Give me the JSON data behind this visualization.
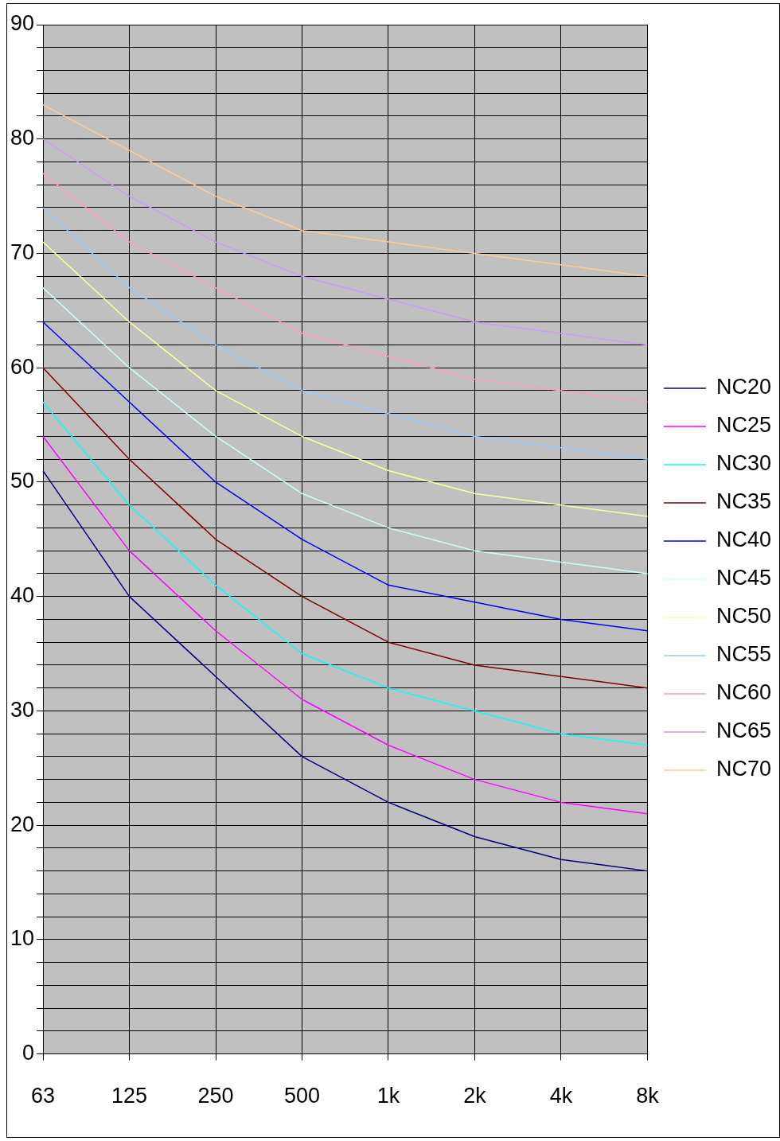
{
  "chart_data": {
    "type": "line",
    "categories": [
      "63",
      "125",
      "250",
      "500",
      "1k",
      "2k",
      "4k",
      "8k"
    ],
    "ylim": [
      0,
      90
    ],
    "yticks": [
      0,
      {
        "value": 2,
        "label": null
      },
      {
        "value": 4,
        "label": null
      },
      {
        "value": 6,
        "label": null
      },
      {
        "value": 8,
        "label": null
      },
      10,
      {
        "value": 12,
        "label": null
      },
      {
        "value": 14,
        "label": null
      },
      {
        "value": 16,
        "label": null
      },
      {
        "value": 18,
        "label": null
      },
      20,
      {
        "value": 22,
        "label": null
      },
      {
        "value": 24,
        "label": null
      },
      {
        "value": 26,
        "label": null
      },
      {
        "value": 28,
        "label": null
      },
      30,
      {
        "value": 32,
        "label": null
      },
      {
        "value": 34,
        "label": null
      },
      {
        "value": 36,
        "label": null
      },
      {
        "value": 38,
        "label": null
      },
      40,
      {
        "value": 42,
        "label": null
      },
      {
        "value": 44,
        "label": null
      },
      {
        "value": 46,
        "label": null
      },
      {
        "value": 48,
        "label": null
      },
      50,
      {
        "value": 52,
        "label": null
      },
      {
        "value": 54,
        "label": null
      },
      {
        "value": 56,
        "label": null
      },
      {
        "value": 58,
        "label": null
      },
      60,
      {
        "value": 62,
        "label": null
      },
      {
        "value": 64,
        "label": null
      },
      {
        "value": 66,
        "label": null
      },
      {
        "value": 68,
        "label": null
      },
      70,
      {
        "value": 72,
        "label": null
      },
      {
        "value": 74,
        "label": null
      },
      {
        "value": 76,
        "label": null
      },
      {
        "value": 78,
        "label": null
      },
      80,
      {
        "value": 82,
        "label": null
      },
      {
        "value": 84,
        "label": null
      },
      {
        "value": 86,
        "label": null
      },
      {
        "value": 88,
        "label": null
      },
      90
    ],
    "grid": true,
    "legend": "right",
    "marker": "none",
    "series": [
      {
        "name": "NC20",
        "color": "#000080",
        "values": [
          51,
          40,
          33,
          26,
          22,
          19,
          17,
          16
        ]
      },
      {
        "name": "NC25",
        "color": "#ff00ff",
        "values": [
          54,
          44,
          37,
          31,
          27,
          24,
          22,
          21
        ]
      },
      {
        "name": "NC30",
        "color": "#00ffff",
        "values": [
          57,
          48,
          41,
          35,
          32,
          30,
          28,
          27
        ]
      },
      {
        "name": "NC35",
        "color": "#800000",
        "values": [
          60,
          52,
          45,
          40,
          36,
          34,
          33,
          32
        ]
      },
      {
        "name": "NC40",
        "color": "#0000ff",
        "values": [
          64,
          57,
          50,
          45,
          41,
          39.5,
          38,
          37
        ]
      },
      {
        "name": "NC45",
        "color": "#ccffff",
        "values": [
          67,
          60,
          54,
          49,
          46,
          44,
          43,
          42
        ]
      },
      {
        "name": "NC50",
        "color": "#ffff99",
        "values": [
          71,
          64,
          58,
          54,
          51,
          49,
          48,
          47
        ]
      },
      {
        "name": "NC55",
        "color": "#99ccff",
        "values": [
          74,
          67,
          62,
          58,
          56,
          54,
          53,
          52
        ]
      },
      {
        "name": "NC60",
        "color": "#ff99cc",
        "values": [
          77,
          71,
          67,
          63,
          61,
          59,
          58,
          57
        ]
      },
      {
        "name": "NC65",
        "color": "#cc99ff",
        "values": [
          80,
          75,
          71,
          68,
          66,
          64,
          63,
          62
        ]
      },
      {
        "name": "NC70",
        "color": "#ffcc99",
        "values": [
          83,
          79,
          75,
          72,
          71,
          70,
          69,
          68
        ]
      }
    ]
  }
}
